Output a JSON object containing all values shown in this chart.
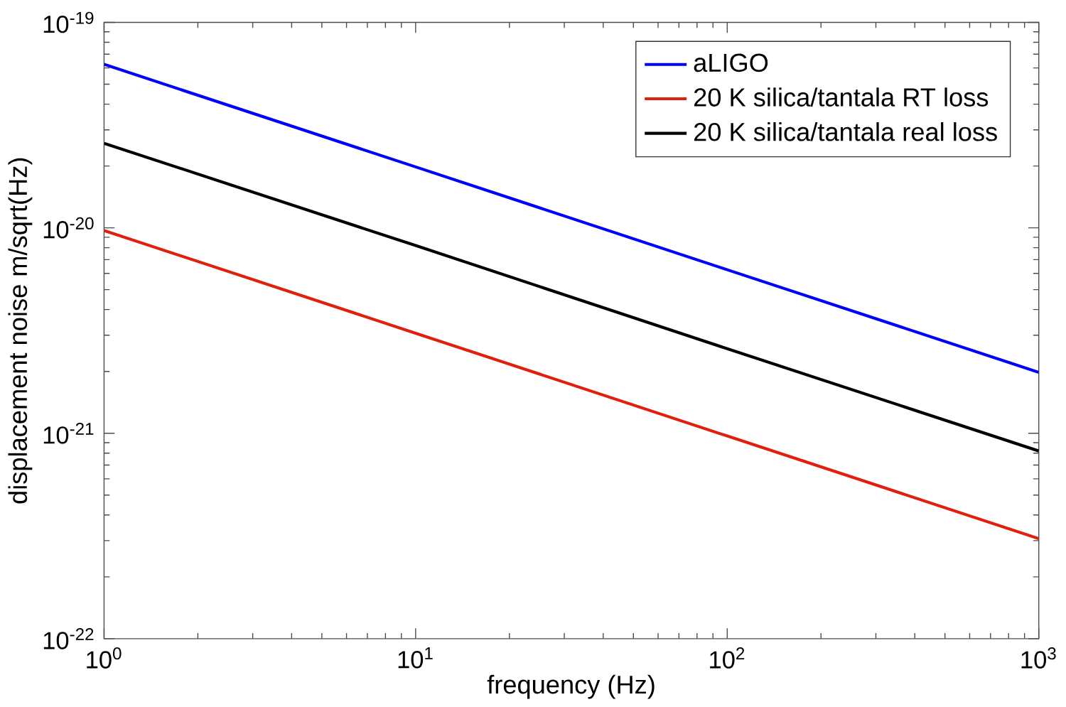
{
  "chart_data": {
    "type": "line",
    "xlabel": "frequency (Hz)",
    "ylabel": "displacement noise m/sqrt(Hz)",
    "log": "xy",
    "x": [
      1,
      10,
      100,
      1000
    ],
    "xlim": [
      1,
      1000
    ],
    "ylim": [
      1e-22,
      1e-19
    ],
    "xticks": [
      {
        "value": 1,
        "label": "10$^{0}$"
      },
      {
        "value": 10,
        "label": "10$^{1}$"
      },
      {
        "value": 100,
        "label": "10$^{2}$"
      },
      {
        "value": 1000,
        "label": "10$^{3}$"
      }
    ],
    "yticks": [
      {
        "value": 1e-22,
        "label": "10$^{-22}$"
      },
      {
        "value": 1e-21,
        "label": "10$^{-21}$"
      },
      {
        "value": 1e-20,
        "label": "10$^{-20}$"
      },
      {
        "value": 1e-19,
        "label": "10$^{-19}$"
      }
    ],
    "grid": false,
    "legend": "top right",
    "marker": "none",
    "line_style": "solid",
    "series": [
      {
        "name": "aLIGO",
        "color": "#0000ff",
        "values": [
          6.25e-20,
          1.98e-20,
          6.25e-21,
          1.98e-21
        ]
      },
      {
        "name": "20 K silica/tantala RT loss",
        "color": "#e0200c",
        "values": [
          9.7e-21,
          3.07e-21,
          9.7e-22,
          3.07e-22
        ]
      },
      {
        "name": "20 K silica/tantala real loss",
        "color": "#000000",
        "values": [
          2.58e-20,
          8.2e-21,
          2.58e-21,
          8.2e-22
        ]
      }
    ]
  }
}
